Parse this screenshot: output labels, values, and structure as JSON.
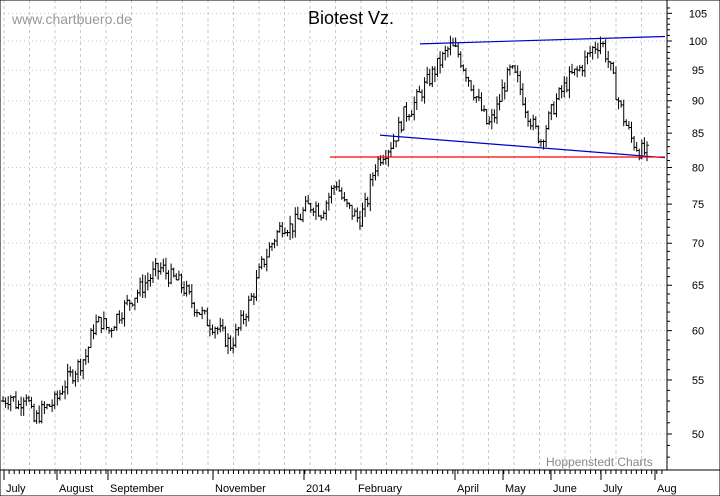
{
  "chart_data": {
    "type": "ohlc",
    "title": "Biotest Vz.",
    "watermark": "www.chartbuero.de",
    "source_label": "Hoppenstedt Charts",
    "y_scale": "log",
    "ylim": [
      47,
      107
    ],
    "y_ticks": [
      50,
      55,
      60,
      65,
      70,
      75,
      80,
      85,
      90,
      95,
      100,
      105
    ],
    "x_tick_labels": [
      "July",
      "August",
      "September",
      "November",
      "2014",
      "February",
      "April",
      "May",
      "June",
      "July",
      "Aug"
    ],
    "price_series": [
      53.0,
      53.5,
      52.5,
      54.0,
      51.0,
      52.0,
      52.5,
      53.0,
      54.5,
      55.5,
      56.5,
      57.5,
      60.5,
      61.0,
      60.0,
      61.5,
      62.5,
      63.5,
      64.5,
      65.5,
      66.5,
      67.0,
      66.0,
      65.5,
      64.5,
      63.0,
      62.0,
      61.0,
      60.5,
      59.5,
      58.5,
      60.0,
      62.0,
      64.0,
      67.0,
      69.0,
      71.0,
      72.5,
      72.0,
      73.0,
      74.5,
      75.0,
      74.0,
      76.0,
      78.0,
      75.0,
      74.0,
      73.0,
      75.0,
      80.0,
      82.0,
      83.0,
      85.0,
      88.0,
      89.0,
      91.0,
      93.0,
      95.0,
      97.0,
      99.0,
      98.0,
      95.0,
      92.0,
      89.0,
      86.0,
      88.0,
      92.0,
      95.0,
      93.0,
      89.0,
      86.0,
      84.0,
      87.0,
      90.0,
      92.0,
      94.0,
      95.0,
      97.0,
      99.0,
      100.0,
      96.0,
      91.0,
      87.0,
      84.0,
      82.5,
      82.0
    ],
    "lines": [
      {
        "name": "upper-trendline",
        "color": "#0000cc",
        "points": [
          [
            "Mar 2014",
            99.5
          ],
          [
            "Aug 2014",
            100.8
          ]
        ]
      },
      {
        "name": "lower-trendline",
        "color": "#0000cc",
        "points": [
          [
            "Feb 2014",
            84.7
          ],
          [
            "Aug 2014",
            81.4
          ]
        ]
      },
      {
        "name": "support-line",
        "color": "#ff0000",
        "points": [
          [
            "Jan 2014",
            81.5
          ],
          [
            "Aug 2014",
            81.5
          ]
        ]
      }
    ],
    "grid": true,
    "bar_color": "#000000"
  }
}
